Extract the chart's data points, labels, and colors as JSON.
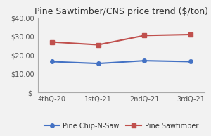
{
  "title": "Pine Sawtimber/CNS price trend ($/ton)",
  "categories": [
    "4thQ-20",
    "1stQ-21",
    "2ndQ-21",
    "3rdQ-21"
  ],
  "series": [
    {
      "name": "Pine Chip-N-Saw",
      "values": [
        16.5,
        15.5,
        17.0,
        16.5
      ],
      "color": "#4472C4",
      "marker": "o",
      "linewidth": 1.5,
      "markersize": 4
    },
    {
      "name": "Pine Sawtimber",
      "values": [
        27.0,
        25.5,
        30.5,
        31.0
      ],
      "color": "#C0504D",
      "marker": "s",
      "linewidth": 1.5,
      "markersize": 4
    }
  ],
  "ylim": [
    0,
    40
  ],
  "yticks": [
    0,
    10,
    20,
    30,
    40
  ],
  "ytick_labels": [
    "$-",
    "$10.00",
    "$20.00",
    "$30.00",
    "$40.00"
  ],
  "background_color": "#f2f2f2",
  "plot_bg_color": "#f2f2f2",
  "title_fontsize": 9,
  "tick_fontsize": 7,
  "legend_fontsize": 7,
  "spine_color": "#aaaaaa"
}
